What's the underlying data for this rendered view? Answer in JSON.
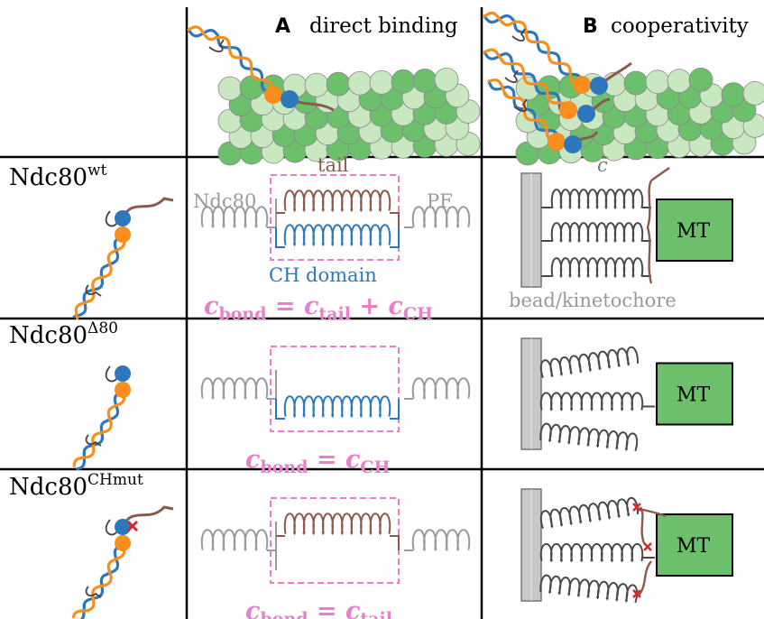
{
  "header": {
    "col_a_letter": "A",
    "col_a_title": "direct binding",
    "col_b_letter": "B",
    "col_b_title": "cooperativity"
  },
  "rows": [
    {
      "label_base": "Ndc80",
      "label_sup": "wt",
      "formula_lhs_sym": "c",
      "formula_lhs_sub": "bond",
      "formula_rhs": [
        {
          "sym": "c",
          "sub": "tail"
        },
        {
          "op": "+"
        },
        {
          "sym": "c",
          "sub": "CH"
        }
      ]
    },
    {
      "label_base": "Ndc80",
      "label_sup": "Δ80",
      "formula_lhs_sym": "c",
      "formula_lhs_sub": "bond",
      "formula_rhs": [
        {
          "sym": "c",
          "sub": "CH"
        }
      ]
    },
    {
      "label_base": "Ndc80",
      "label_sup": "CHmut",
      "formula_lhs_sym": "c",
      "formula_lhs_sub": "bond",
      "formula_rhs": [
        {
          "sym": "c",
          "sub": "tail"
        }
      ]
    }
  ],
  "spring_labels": {
    "tail": "tail",
    "ndc80": "Ndc80",
    "pf": "PF",
    "ch_domain": "CH domain",
    "c_tilde": "c̃",
    "bead": "bead/kinetochore",
    "mt": "MT"
  },
  "colors": {
    "ndc80_orange": "#f98d1e",
    "ndc80_blue": "#2d78bc",
    "tail_brown": "#8b5a4a",
    "mt_green": "#6cc06c",
    "mt_light": "#c9e8c2",
    "bond_pink": "#e87fca",
    "spring_gray": "#9a9a9a",
    "spring_dark": "#4a4a4a",
    "mut_red": "#d6282c",
    "bead_gray": "#c8c8c8"
  }
}
